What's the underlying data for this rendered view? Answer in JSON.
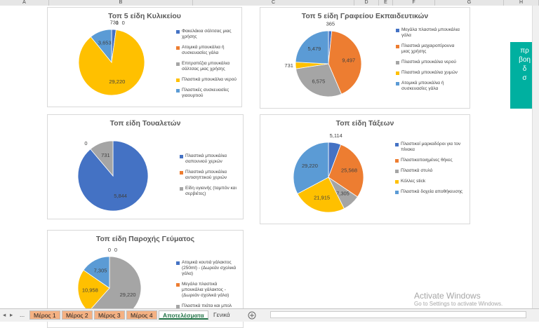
{
  "column_headers": [
    "A",
    "B",
    "C",
    "D",
    "E",
    "F",
    "G",
    "H"
  ],
  "chart_data": [
    {
      "type": "pie",
      "title": "Τοπ 5 είδη Κυλικείου",
      "categories": [
        "Φακελάκια σάλτσας μιας χρήσης",
        "Ατομικά μπουκάλια ή συσκευασίες γάλα",
        "Επιτραπέζια μπουκάλια σάλτσας μιας χρήσης",
        "Πλαστικά μπουκάλια νερού",
        "Πλαστικές συσκευασίες γιαουρτιού"
      ],
      "values": [
        731,
        0,
        0,
        29220,
        3653
      ],
      "value_labels": [
        "731",
        "0",
        "0",
        "29,220",
        "3,653"
      ],
      "colors": [
        "#4472c4",
        "#ed7d31",
        "#a5a5a5",
        "#ffc000",
        "#5b9bd5"
      ]
    },
    {
      "type": "pie",
      "title": "Τοπ 5 είδη Γραφείου Εκπαιδευτικών",
      "categories": [
        "Μεγάλα πλαστικά μπουκάλια γάλα",
        "Πλαστικά μαχαιροπίρουνα μιας χρήσης",
        "Πλαστικά μπουκάλια νερού",
        "Πλαστικά μπουκάλια χυμών",
        "Ατομικά μπουκάλια ή συσκευασίες γάλα"
      ],
      "values": [
        365,
        9497,
        6575,
        731,
        5479
      ],
      "value_labels": [
        "365",
        "9,497",
        "6,575",
        "731",
        "5,479"
      ],
      "colors": [
        "#4472c4",
        "#ed7d31",
        "#a5a5a5",
        "#ffc000",
        "#5b9bd5"
      ]
    },
    {
      "type": "pie",
      "title": "Τοπ είδη Τουαλετών",
      "categories": [
        "Πλαστικά μπουκάλια σαπουνιού χεριών",
        "Πλαστικά μπουκάλια αντισηπτικού χεριών",
        "Είδη υγιεινής (ταμπόν και σερβιέτες)"
      ],
      "values": [
        5844,
        0,
        731
      ],
      "value_labels": [
        "5,844",
        "0",
        "731"
      ],
      "colors": [
        "#4472c4",
        "#ed7d31",
        "#a5a5a5"
      ]
    },
    {
      "type": "pie",
      "title": "Τοπ είδη Τάξεων",
      "categories": [
        "Πλαστικοί μαρκαδόροι για τον πίνακα",
        "Πλαστικοποιημένες θήκες",
        "Πλαστικά στυλό",
        "Κόλλες stick",
        "Πλαστικά δοχεία αποθήκευσης"
      ],
      "values": [
        5114,
        25568,
        7305,
        21915,
        29220
      ],
      "value_labels": [
        "5,114",
        "25,568",
        "7,305",
        "21,915",
        "29,220"
      ],
      "colors": [
        "#4472c4",
        "#ed7d31",
        "#a5a5a5",
        "#ffc000",
        "#5b9bd5"
      ]
    },
    {
      "type": "pie",
      "title": "Τοπ είδη Παροχής Γεύματος",
      "categories": [
        "Ατομικά κουτιά γάλακτος (250ml) - (Δωρεάν σχολικά γάλα)",
        "Μεγάλα πλαστικά μπουκάλια γάλακτος - (Δωρεάν σχολικά γάλα)",
        "Πλαστικά πιάτα και μπολ",
        null,
        null
      ],
      "values": [
        0,
        0,
        29220,
        10958,
        7305
      ],
      "value_labels": [
        "0",
        "0",
        "29,220",
        "10,958",
        "7,305"
      ],
      "colors": [
        "#4472c4",
        "#ed7d31",
        "#a5a5a5",
        "#ffc000",
        "#5b9bd5"
      ]
    }
  ],
  "nav_ellipsis": "...",
  "sheet_tabs": [
    "Μέρος 1",
    "Μέρος 2",
    "Μέρος 3",
    "Μέρος 4",
    "Αποτελέσματα",
    "Γενικά"
  ],
  "side_panel_text": [
    "πρ",
    "βοη",
    "δ",
    "σ"
  ],
  "watermark": {
    "title": "Activate Windows",
    "subtitle": "Go to Settings to activate Windows."
  }
}
